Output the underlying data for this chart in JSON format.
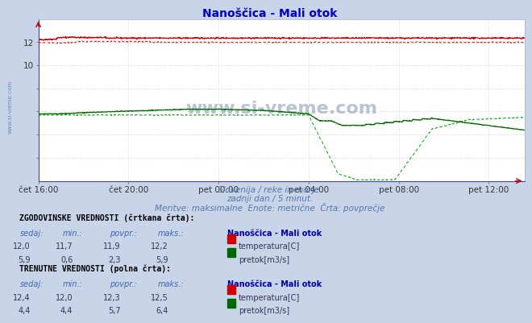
{
  "title": "Nanoščica - Mali otok",
  "fig_bg_color": "#c8d4e8",
  "plot_bg_color": "#ffffff",
  "grid_h_color": "#e8c0c0",
  "grid_v_color": "#c8c8d8",
  "x_labels": [
    "čet 16:00",
    "čet 20:00",
    "pet 00:00",
    "pet 04:00",
    "pet 08:00",
    "pet 12:00"
  ],
  "x_ticks_idx": [
    0,
    240,
    480,
    720,
    960,
    1200
  ],
  "x_max": 1295,
  "y_min": 0,
  "y_max": 14,
  "y_ticks": [
    2,
    4,
    6,
    8,
    10,
    12
  ],
  "y_tick_labels": [
    "",
    "",
    "",
    "",
    "10",
    "12"
  ],
  "subtitle1": "Slovenija / reke in morje.",
  "subtitle2": "zadnji dan / 5 minut.",
  "subtitle3": "Meritve: maksimalne  Enote: metrične  Črta: povprečje",
  "watermark": "www.si-vreme.com",
  "side_label": "www.si-vreme.com",
  "temp_solid_color": "#cc0000",
  "temp_dash_color": "#cc2222",
  "flow_solid_color": "#006600",
  "flow_dash_color": "#00aa00",
  "legend_title": "Nanoščica - Mali otok",
  "hist_label": "ZGODOVINSKE VREDNOSTI (črtkana črta):",
  "curr_label": "TRENUTNE VREDNOSTI (polna črta):",
  "hist_temp": [
    "12,0",
    "11,7",
    "11,9",
    "12,2"
  ],
  "hist_flow": [
    "5,9",
    "0,6",
    "2,3",
    "5,9"
  ],
  "curr_temp": [
    "12,4",
    "12,0",
    "12,3",
    "12,5"
  ],
  "curr_flow": [
    "4,4",
    "4,4",
    "5,7",
    "6,4"
  ],
  "temp_label": "temperatura[C]",
  "flow_label": "pretok[m3/s]",
  "col_headers": [
    "sedaj:",
    "min.:",
    "povpr.:",
    "maks.:"
  ],
  "text_color": "#4466aa",
  "header_color": "#000000",
  "value_color": "#333355"
}
